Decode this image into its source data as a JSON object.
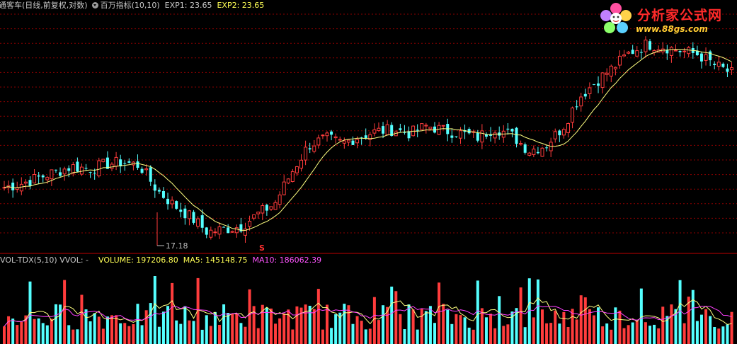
{
  "header": {
    "title": "通客车(日线,前复权,对数)",
    "indicator": "百万指标(10,10)",
    "exp1": "EXP1: 23.65",
    "exp2": "EXP2: 23.65"
  },
  "volume_header": {
    "title": "VOL-TDX(5,10)",
    "vvol": "VVOL: -",
    "volume": "VOLUME: 197206.80",
    "ma5": "MA5: 145148.75",
    "ma10": "MA10: 186062.39"
  },
  "annotations": {
    "low_price": "17.18",
    "signal": "S"
  },
  "logo": {
    "title": "分析家公式网",
    "url": "www.88gs.com"
  },
  "colors": {
    "background": "#000000",
    "up": "#ff3c3c",
    "down": "#54ffff",
    "ma_line": "#ffff80",
    "ma10_line": "#ff40ff",
    "grid": "#8b0000",
    "separator": "#c00000"
  },
  "chart_data": [
    {
      "type": "candlestick",
      "title": "通客车(日线,前复权,对数)",
      "annotation_low": 17.18,
      "approx_price_path": [
        20.6,
        20.9,
        21.4,
        21.9,
        22.4,
        22.2,
        22.6,
        22.8,
        22.5,
        20.4,
        19.2,
        18.3,
        17.2,
        17.4,
        17.6,
        18.5,
        19.3,
        21.9,
        24.4,
        25.1,
        24.6,
        25.3,
        25.8,
        26.0,
        25.6,
        26.4,
        25.9,
        25.6,
        25.2,
        26.2,
        25.4,
        23.9,
        24.4,
        26.2,
        29.6,
        31.6,
        33.4,
        35.5,
        36.7,
        36.3,
        35.7,
        35.2,
        33.7,
        32.6
      ]
    },
    {
      "type": "bar",
      "title": "VOL-TDX(5,10)",
      "series": [
        {
          "name": "VOLUME",
          "last": 197206.8
        },
        {
          "name": "MA5",
          "last": 145148.75
        },
        {
          "name": "MA10",
          "last": 186062.39
        }
      ]
    }
  ]
}
